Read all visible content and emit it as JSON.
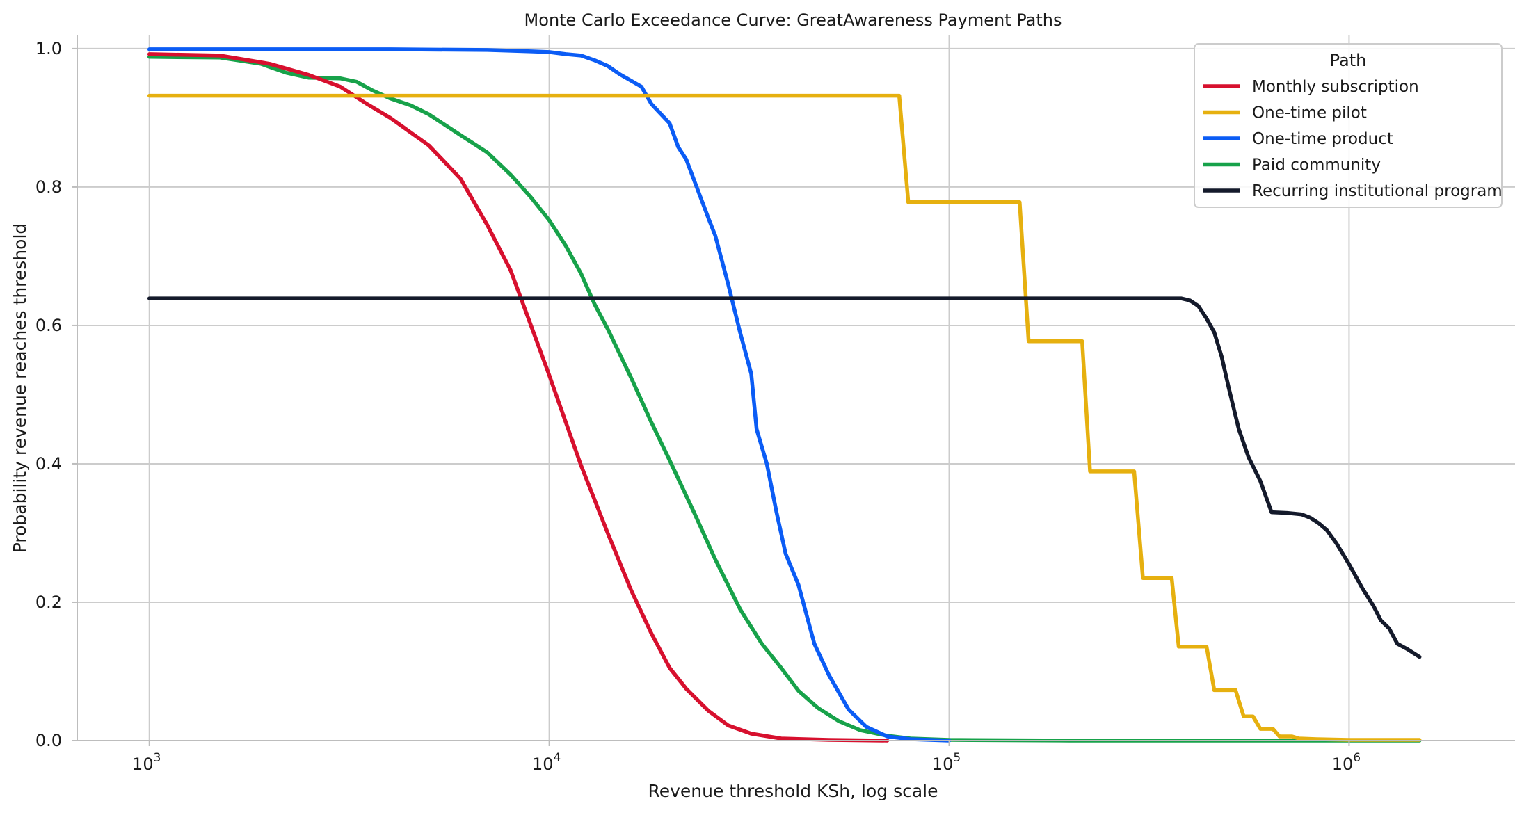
{
  "chart_data": {
    "type": "line",
    "title": "Monte Carlo Exceedance Curve: GreatAwareness Payment Paths",
    "xlabel": "Revenue threshold KSh, log scale",
    "ylabel": "Probability revenue reaches threshold",
    "x_scale": "log",
    "xlim": [
      660,
      2600000
    ],
    "ylim": [
      0.0,
      1.02
    ],
    "x_ticks": [
      {
        "value": 1000,
        "label": "10",
        "exp": "3"
      },
      {
        "value": 10000,
        "label": "10",
        "exp": "4"
      },
      {
        "value": 100000,
        "label": "10",
        "exp": "5"
      },
      {
        "value": 1000000,
        "label": "10",
        "exp": "6"
      }
    ],
    "y_ticks": [
      {
        "value": 0.0,
        "label": "0.0"
      },
      {
        "value": 0.2,
        "label": "0.2"
      },
      {
        "value": 0.4,
        "label": "0.4"
      },
      {
        "value": 0.6,
        "label": "0.6"
      },
      {
        "value": 0.8,
        "label": "0.8"
      },
      {
        "value": 1.0,
        "label": "1.0"
      }
    ],
    "grid": true,
    "legend": {
      "title": "Path",
      "placement": "top-right"
    },
    "series": [
      {
        "name": "Monthly subscription",
        "color": "#d7102e",
        "points": [
          [
            1000,
            0.992
          ],
          [
            1500,
            0.99
          ],
          [
            2000,
            0.978
          ],
          [
            2500,
            0.962
          ],
          [
            3000,
            0.945
          ],
          [
            3500,
            0.92
          ],
          [
            4000,
            0.9
          ],
          [
            5000,
            0.86
          ],
          [
            6000,
            0.812
          ],
          [
            7000,
            0.745
          ],
          [
            8000,
            0.68
          ],
          [
            9000,
            0.6
          ],
          [
            10000,
            0.528
          ],
          [
            11000,
            0.46
          ],
          [
            12000,
            0.398
          ],
          [
            14000,
            0.3
          ],
          [
            16000,
            0.218
          ],
          [
            18000,
            0.155
          ],
          [
            20000,
            0.105
          ],
          [
            22000,
            0.075
          ],
          [
            25000,
            0.043
          ],
          [
            28000,
            0.022
          ],
          [
            32000,
            0.01
          ],
          [
            38000,
            0.003
          ],
          [
            50000,
            0.001
          ],
          [
            70000,
            0.0
          ]
        ]
      },
      {
        "name": "One-time pilot",
        "color": "#e6b00f",
        "points": [
          [
            1000,
            0.932
          ],
          [
            75000,
            0.932
          ],
          [
            79000,
            0.778
          ],
          [
            150000,
            0.778
          ],
          [
            158000,
            0.577
          ],
          [
            215000,
            0.577
          ],
          [
            225000,
            0.389
          ],
          [
            290000,
            0.389
          ],
          [
            305000,
            0.235
          ],
          [
            360000,
            0.235
          ],
          [
            375000,
            0.136
          ],
          [
            440000,
            0.136
          ],
          [
            460000,
            0.073
          ],
          [
            520000,
            0.073
          ],
          [
            545000,
            0.035
          ],
          [
            575000,
            0.035
          ],
          [
            600000,
            0.017
          ],
          [
            645000,
            0.017
          ],
          [
            670000,
            0.006
          ],
          [
            720000,
            0.006
          ],
          [
            750000,
            0.003
          ],
          [
            830000,
            0.002
          ],
          [
            1000000,
            0.001
          ],
          [
            1500000,
            0.001
          ]
        ]
      },
      {
        "name": "One-time product",
        "color": "#0b5cf5",
        "points": [
          [
            1000,
            0.999
          ],
          [
            4000,
            0.999
          ],
          [
            7000,
            0.998
          ],
          [
            9000,
            0.996
          ],
          [
            10000,
            0.995
          ],
          [
            11000,
            0.992
          ],
          [
            12000,
            0.99
          ],
          [
            13000,
            0.983
          ],
          [
            14000,
            0.975
          ],
          [
            15000,
            0.963
          ],
          [
            17000,
            0.945
          ],
          [
            18000,
            0.92
          ],
          [
            20000,
            0.892
          ],
          [
            21000,
            0.858
          ],
          [
            22000,
            0.84
          ],
          [
            25000,
            0.755
          ],
          [
            26000,
            0.73
          ],
          [
            28000,
            0.66
          ],
          [
            30000,
            0.59
          ],
          [
            32000,
            0.53
          ],
          [
            33000,
            0.45
          ],
          [
            35000,
            0.4
          ],
          [
            37000,
            0.33
          ],
          [
            39000,
            0.27
          ],
          [
            42000,
            0.225
          ],
          [
            46000,
            0.14
          ],
          [
            50000,
            0.095
          ],
          [
            56000,
            0.045
          ],
          [
            62000,
            0.02
          ],
          [
            70000,
            0.006
          ],
          [
            80000,
            0.002
          ],
          [
            100000,
            0.0
          ]
        ]
      },
      {
        "name": "Paid community",
        "color": "#17a24a",
        "points": [
          [
            1000,
            0.988
          ],
          [
            1500,
            0.987
          ],
          [
            1900,
            0.978
          ],
          [
            2200,
            0.965
          ],
          [
            2500,
            0.958
          ],
          [
            3000,
            0.957
          ],
          [
            3300,
            0.952
          ],
          [
            3600,
            0.94
          ],
          [
            4000,
            0.928
          ],
          [
            4500,
            0.918
          ],
          [
            5000,
            0.905
          ],
          [
            6000,
            0.875
          ],
          [
            7000,
            0.85
          ],
          [
            8000,
            0.818
          ],
          [
            9000,
            0.785
          ],
          [
            10000,
            0.752
          ],
          [
            11000,
            0.715
          ],
          [
            12000,
            0.675
          ],
          [
            13000,
            0.63
          ],
          [
            14000,
            0.595
          ],
          [
            16000,
            0.525
          ],
          [
            18000,
            0.46
          ],
          [
            20000,
            0.405
          ],
          [
            23000,
            0.33
          ],
          [
            26000,
            0.262
          ],
          [
            30000,
            0.19
          ],
          [
            34000,
            0.14
          ],
          [
            38000,
            0.105
          ],
          [
            42000,
            0.072
          ],
          [
            47000,
            0.047
          ],
          [
            53000,
            0.028
          ],
          [
            60000,
            0.015
          ],
          [
            70000,
            0.007
          ],
          [
            80000,
            0.003
          ],
          [
            100000,
            0.001
          ],
          [
            200000,
            0.0
          ],
          [
            1500000,
            0.0
          ]
        ]
      },
      {
        "name": "Recurring institutional program",
        "color": "#141a2b",
        "points": [
          [
            1000,
            0.639
          ],
          [
            380000,
            0.639
          ],
          [
            400000,
            0.636
          ],
          [
            420000,
            0.628
          ],
          [
            440000,
            0.61
          ],
          [
            460000,
            0.59
          ],
          [
            480000,
            0.555
          ],
          [
            500000,
            0.51
          ],
          [
            530000,
            0.45
          ],
          [
            560000,
            0.41
          ],
          [
            600000,
            0.375
          ],
          [
            640000,
            0.33
          ],
          [
            700000,
            0.329
          ],
          [
            760000,
            0.327
          ],
          [
            800000,
            0.322
          ],
          [
            840000,
            0.314
          ],
          [
            880000,
            0.304
          ],
          [
            930000,
            0.285
          ],
          [
            1000000,
            0.255
          ],
          [
            1080000,
            0.22
          ],
          [
            1150000,
            0.195
          ],
          [
            1200000,
            0.174
          ],
          [
            1260000,
            0.162
          ],
          [
            1320000,
            0.14
          ],
          [
            1400000,
            0.132
          ],
          [
            1500000,
            0.121
          ]
        ]
      }
    ]
  }
}
